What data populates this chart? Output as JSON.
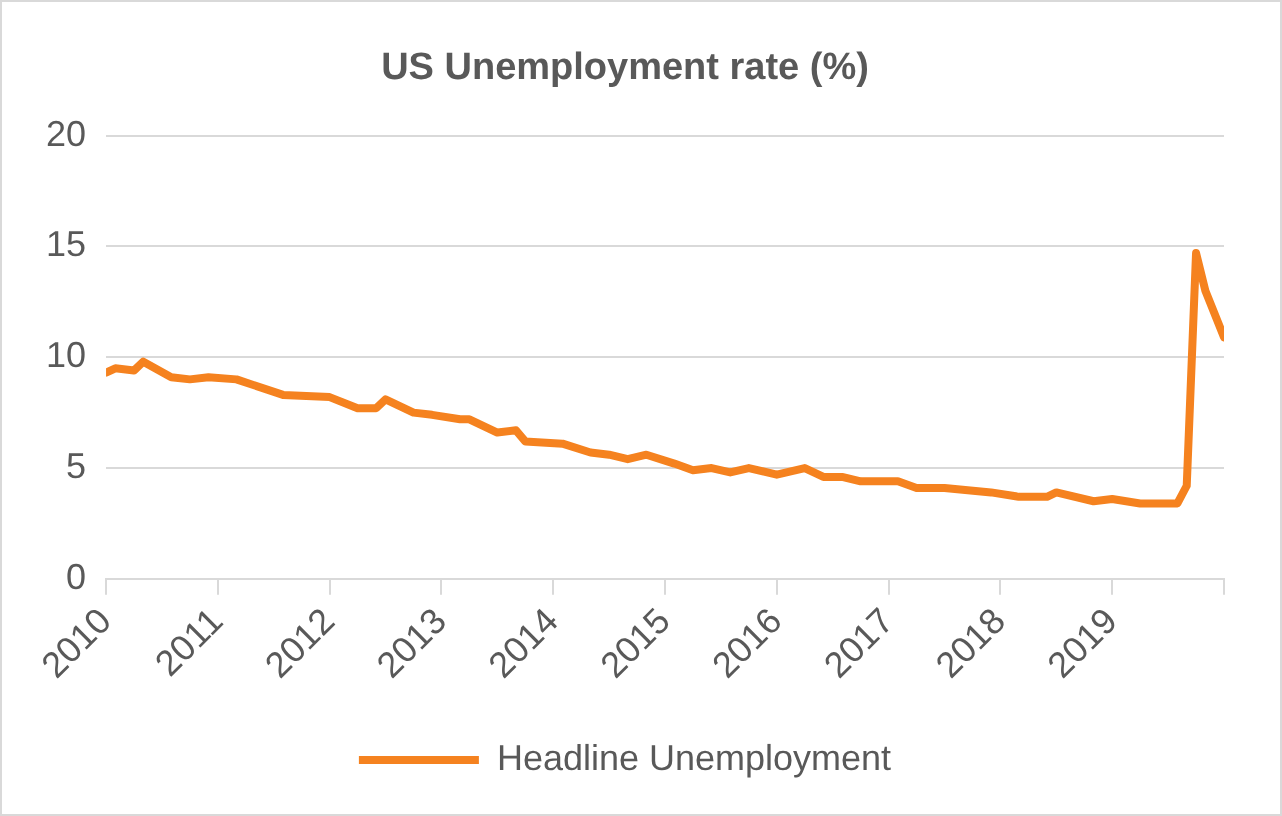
{
  "chart_data": {
    "type": "line",
    "title": "US Unemployment rate (%)",
    "x": [
      "2010-01",
      "2010-02",
      "2010-04",
      "2010-05",
      "2010-08",
      "2010-10",
      "2010-12",
      "2011-03",
      "2011-08",
      "2012-01",
      "2012-04",
      "2012-06",
      "2012-07",
      "2012-10",
      "2012-12",
      "2013-03",
      "2013-04",
      "2013-07",
      "2013-09",
      "2013-10",
      "2014-02",
      "2014-05",
      "2014-07",
      "2014-09",
      "2014-11",
      "2015-02",
      "2015-04",
      "2015-06",
      "2015-08",
      "2015-10",
      "2016-01",
      "2016-04",
      "2016-06",
      "2016-08",
      "2016-10",
      "2017-02",
      "2017-04",
      "2017-07",
      "2017-12",
      "2018-03",
      "2018-06",
      "2018-07",
      "2018-11",
      "2019-01",
      "2019-04",
      "2019-08",
      "2019-09",
      "2019-10",
      "2019-11",
      "2020-01"
    ],
    "series": [
      {
        "name": "Headline Unemployment",
        "color": "#f5821f",
        "values": [
          9.3,
          9.5,
          9.4,
          9.8,
          9.1,
          9.0,
          9.1,
          9.0,
          8.3,
          8.2,
          7.7,
          7.7,
          8.1,
          7.5,
          7.4,
          7.2,
          7.2,
          6.6,
          6.7,
          6.2,
          6.1,
          5.7,
          5.6,
          5.4,
          5.6,
          5.2,
          4.9,
          5.0,
          4.8,
          5.0,
          4.7,
          5.0,
          4.6,
          4.6,
          4.4,
          4.4,
          4.1,
          4.1,
          3.9,
          3.7,
          3.7,
          3.9,
          3.5,
          3.6,
          3.4,
          3.4,
          4.2,
          14.7,
          13.0,
          10.9
        ]
      }
    ],
    "xlim": [
      "2010-01",
      "2020-01"
    ],
    "xticks": [
      {
        "value": "2010-01",
        "label": "2010"
      },
      {
        "value": "2011-01",
        "label": "2011"
      },
      {
        "value": "2012-01",
        "label": "2012"
      },
      {
        "value": "2013-01",
        "label": "2013"
      },
      {
        "value": "2014-01",
        "label": "2014"
      },
      {
        "value": "2015-01",
        "label": "2015"
      },
      {
        "value": "2016-01",
        "label": "2016"
      },
      {
        "value": "2017-01",
        "label": "2017"
      },
      {
        "value": "2018-01",
        "label": "2018"
      },
      {
        "value": "2019-01",
        "label": "2019"
      },
      {
        "value": "2020-01",
        "label": null
      }
    ],
    "ylim": [
      0,
      20
    ],
    "yticks": [
      0,
      5,
      10,
      15,
      20
    ],
    "grid": "y",
    "legend": "bottom",
    "marker": "none",
    "line_style": "solid"
  }
}
